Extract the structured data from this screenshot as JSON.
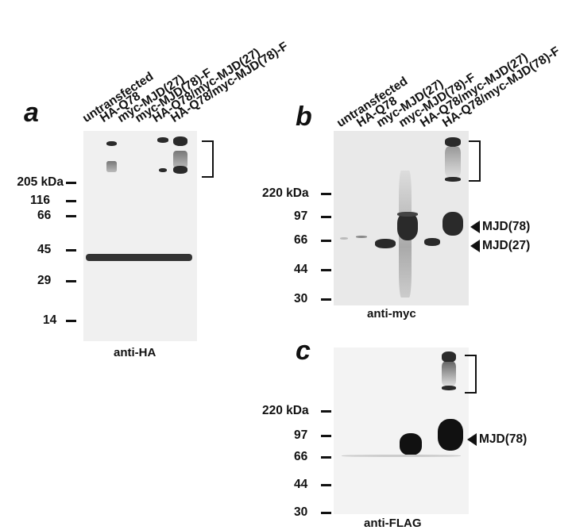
{
  "panel_a": {
    "letter": "a",
    "lanes": [
      "untransfected",
      "HA-Q78",
      "myc-MJD(27)",
      "myc-MJD(78)-F",
      "HA-Q78/myc-MJD(27)",
      "HA-Q78/myc-MJD(78)-F"
    ],
    "markers": [
      "205 kDa",
      "116",
      "66",
      "45",
      "29",
      "14"
    ],
    "antibody": "anti-HA"
  },
  "panel_b": {
    "letter": "b",
    "lanes": [
      "untransfected",
      "HA-Q78",
      "myc-MJD(27)",
      "myc-MJD(78)-F",
      "HA-Q78/myc-MJD(27)",
      "HA-Q78/myc-MJD(78)-F"
    ],
    "markers": [
      "220 kDa",
      "97",
      "66",
      "44",
      "30"
    ],
    "antibody": "anti-myc",
    "arrows": [
      "MJD(78)",
      "MJD(27)"
    ]
  },
  "panel_c": {
    "letter": "c",
    "markers": [
      "220 kDa",
      "97",
      "66",
      "44",
      "30"
    ],
    "antibody": "anti-FLAG",
    "arrows": [
      "MJD(78)"
    ]
  }
}
